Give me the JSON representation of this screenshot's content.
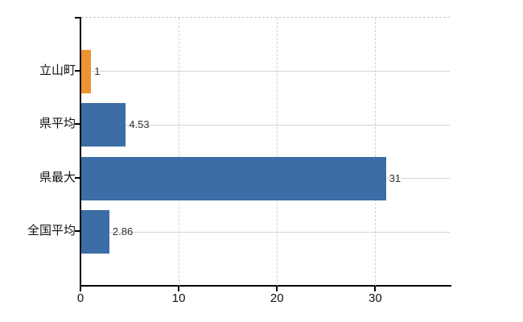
{
  "chart_data": {
    "type": "bar",
    "orientation": "horizontal",
    "title": "",
    "xlabel": "",
    "ylabel": "",
    "categories": [
      "立山町",
      "県平均",
      "県最大",
      "全国平均"
    ],
    "values": [
      1,
      4.53,
      31,
      2.86
    ],
    "value_labels": [
      "1",
      "4.53",
      "31",
      "2.86"
    ],
    "bar_colors": [
      "#ee9331",
      "#3c6da6",
      "#3c6da6",
      "#3c6da6"
    ],
    "x_ticks": [
      0,
      10,
      20,
      30
    ],
    "x_tick_labels": [
      "0",
      "10",
      "20",
      "30"
    ],
    "xlim": [
      0,
      37.5
    ],
    "grid": true,
    "legend": false,
    "colors": {
      "bar_blue": "#3c6da6",
      "bar_orange": "#ee9331",
      "grid": "#d3d7d1",
      "axis": "#000000",
      "value_label": "#333333",
      "background": "#ffffff"
    }
  }
}
